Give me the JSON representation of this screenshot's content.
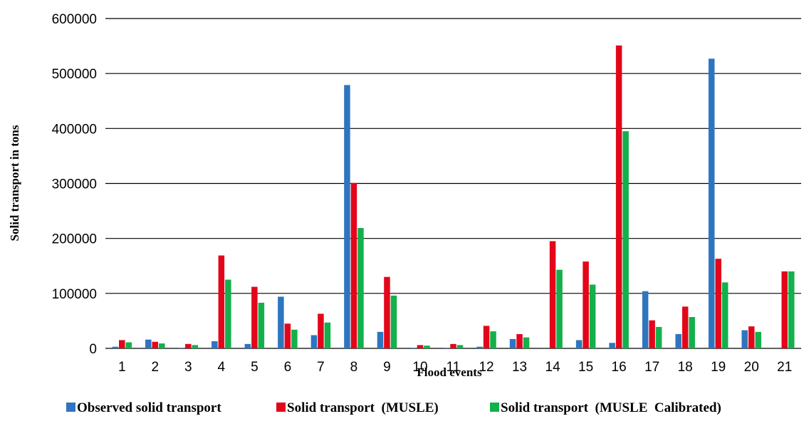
{
  "chart_data": {
    "type": "bar",
    "xlabel": "Flood events",
    "ylabel": "Solid transport in tons",
    "ylim": [
      0,
      600000
    ],
    "yticks": [
      0,
      100000,
      200000,
      300000,
      400000,
      500000,
      600000
    ],
    "ytick_labels": [
      "0",
      "100000",
      "200000",
      "300000",
      "400000",
      "500000",
      "600000"
    ],
    "grid": true,
    "legend_position": "bottom",
    "categories": [
      "1",
      "2",
      "3",
      "4",
      "5",
      "6",
      "7",
      "8",
      "9",
      "10",
      "11",
      "12",
      "13",
      "14",
      "15",
      "16",
      "17",
      "18",
      "19",
      "20",
      "21"
    ],
    "series": [
      {
        "name": "Observed solid transport",
        "color": "#2E75C0",
        "values": [
          3000,
          16000,
          1000,
          13000,
          8000,
          94000,
          24000,
          479000,
          30000,
          1000,
          1000,
          3000,
          17000,
          0,
          15000,
          10000,
          104000,
          26000,
          527000,
          33000,
          0
        ]
      },
      {
        "name": "Solid transport  (MUSLE)",
        "color": "#E3061A",
        "values": [
          15000,
          12000,
          8000,
          169000,
          112000,
          45000,
          63000,
          301000,
          130000,
          6000,
          8000,
          41000,
          26000,
          195000,
          158000,
          551000,
          51000,
          76000,
          163000,
          40000,
          140000
        ]
      },
      {
        "name": "Solid transport  (MUSLE  Calibrated)",
        "color": "#13B04B",
        "values": [
          11000,
          9000,
          6000,
          125000,
          83000,
          34000,
          47000,
          219000,
          96000,
          5000,
          6000,
          31000,
          20000,
          143000,
          116000,
          395000,
          39000,
          57000,
          120000,
          30000,
          140000
        ]
      }
    ]
  }
}
